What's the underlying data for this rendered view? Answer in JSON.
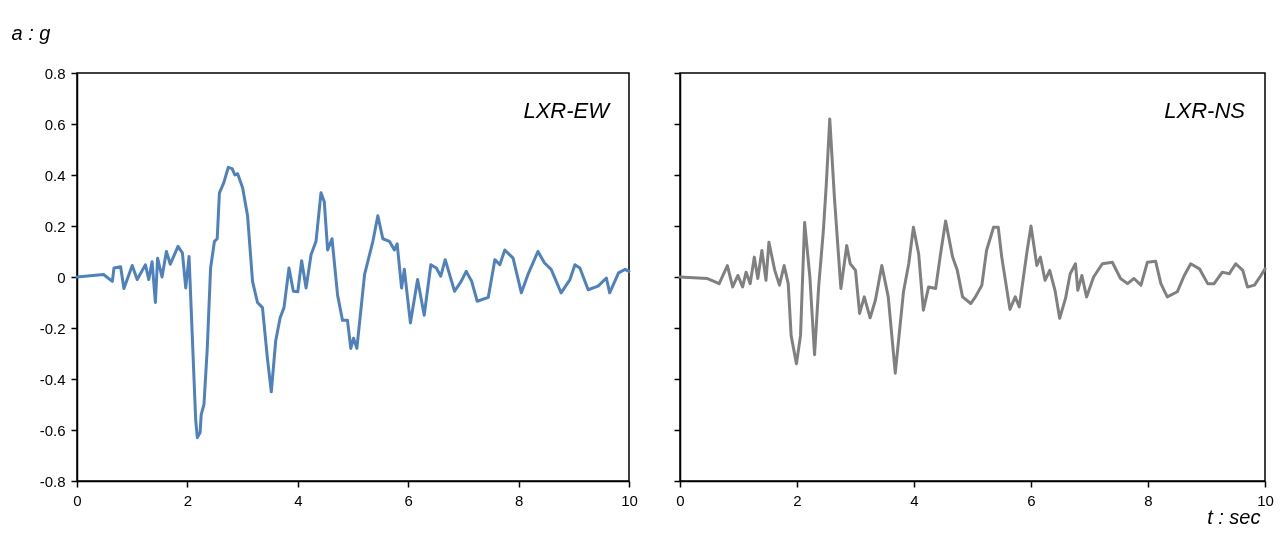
{
  "chart_data": [
    {
      "type": "line",
      "ylabel": "a : g",
      "annotations": [
        "LXR-EW"
      ],
      "xlim": [
        0,
        10
      ],
      "xticks": [
        0,
        2,
        4,
        6,
        8,
        10
      ],
      "ylim": [
        -0.8,
        0.8
      ],
      "yticks": [
        -0.8,
        -0.6,
        -0.4,
        -0.2,
        0,
        0.2,
        0.4,
        0.6,
        0.8
      ],
      "grid": false,
      "line_style": "solid",
      "marker": "none",
      "series": [
        {
          "color": "#4f81bd",
          "x": [
            0,
            0.48,
            0.64,
            0.67,
            0.79,
            0.85,
            1.0,
            1.09,
            1.24,
            1.3,
            1.36,
            1.42,
            1.46,
            1.54,
            1.62,
            1.69,
            1.83,
            1.91,
            1.97,
            2.03,
            2.15,
            2.18,
            2.23,
            2.25,
            2.3,
            2.36,
            2.42,
            2.49,
            2.54,
            2.58,
            2.66,
            2.74,
            2.81,
            2.86,
            2.91,
            3.0,
            3.09,
            3.18,
            3.27,
            3.36,
            3.45,
            3.52,
            3.6,
            3.68,
            3.75,
            3.84,
            3.92,
            4.0,
            4.07,
            4.15,
            4.24,
            4.33,
            4.42,
            4.48,
            4.54,
            4.62,
            4.72,
            4.81,
            4.9,
            4.96,
            5.01,
            5.07,
            5.21,
            5.36,
            5.45,
            5.54,
            5.66,
            5.75,
            5.8,
            5.88,
            5.93,
            6.04,
            6.17,
            6.29,
            6.41,
            6.51,
            6.59,
            6.67,
            6.84,
            6.96,
            7.05,
            7.15,
            7.25,
            7.45,
            7.57,
            7.66,
            7.75,
            7.9,
            8.05,
            8.17,
            8.35,
            8.47,
            8.59,
            8.77,
            8.93,
            9.02,
            9.11,
            9.26,
            9.44,
            9.59,
            9.65,
            9.81,
            9.93,
            10.0
          ],
          "values": [
            0,
            0.01,
            -0.017,
            0.035,
            0.04,
            -0.045,
            0.045,
            -0.01,
            0.048,
            -0.01,
            0.06,
            -0.1,
            0.074,
            0,
            0.1,
            0.05,
            0.12,
            0.094,
            -0.043,
            0.08,
            -0.56,
            -0.63,
            -0.61,
            -0.54,
            -0.5,
            -0.28,
            0.035,
            0.14,
            0.15,
            0.33,
            0.37,
            0.43,
            0.425,
            0.4,
            0.405,
            0.35,
            0.24,
            -0.017,
            -0.1,
            -0.12,
            -0.32,
            -0.45,
            -0.25,
            -0.16,
            -0.12,
            0.035,
            -0.056,
            -0.058,
            0.064,
            -0.043,
            0.087,
            0.14,
            0.33,
            0.295,
            0.106,
            0.15,
            -0.07,
            -0.17,
            -0.17,
            -0.28,
            -0.24,
            -0.28,
            0.01,
            0.14,
            0.24,
            0.15,
            0.14,
            0.106,
            0.13,
            -0.043,
            0.03,
            -0.18,
            -0.01,
            -0.15,
            0.048,
            0.035,
            0.003,
            0.068,
            -0.056,
            -0.017,
            0.022,
            -0.017,
            -0.095,
            -0.08,
            0.068,
            0.048,
            0.106,
            0.074,
            -0.062,
            0.01,
            0.1,
            0.055,
            0.03,
            -0.062,
            -0.01,
            0.048,
            0.035,
            -0.05,
            -0.036,
            -0.004,
            -0.062,
            0.016,
            0.03,
            0.022
          ]
        }
      ]
    },
    {
      "type": "line",
      "xlabel": "t : sec",
      "annotations": [
        "LXR-NS"
      ],
      "xlim": [
        0,
        10
      ],
      "xticks": [
        0,
        2,
        4,
        6,
        8,
        10
      ],
      "ylim": [
        -0.8,
        0.8
      ],
      "yticks": [
        -0.8,
        -0.6,
        -0.4,
        -0.2,
        0,
        0.2,
        0.4,
        0.6,
        0.8
      ],
      "tick_labels": "x",
      "grid": false,
      "line_style": "solid",
      "marker": "none",
      "series": [
        {
          "color": "#808080",
          "x": [
            0,
            0.47,
            0.67,
            0.81,
            0.9,
            0.99,
            1.07,
            1.13,
            1.2,
            1.27,
            1.33,
            1.4,
            1.47,
            1.52,
            1.62,
            1.7,
            1.78,
            1.85,
            1.9,
            1.99,
            2.06,
            2.13,
            2.22,
            2.3,
            2.37,
            2.45,
            2.5,
            2.56,
            2.64,
            2.75,
            2.85,
            2.91,
            3.0,
            3.07,
            3.15,
            3.25,
            3.34,
            3.45,
            3.56,
            3.68,
            3.82,
            3.91,
            3.99,
            4.08,
            4.16,
            4.25,
            4.37,
            4.45,
            4.54,
            4.66,
            4.74,
            4.83,
            4.97,
            5.05,
            5.16,
            5.24,
            5.36,
            5.44,
            5.5,
            5.64,
            5.73,
            5.8,
            5.93,
            6.0,
            6.1,
            6.16,
            6.24,
            6.32,
            6.41,
            6.49,
            6.59,
            6.67,
            6.76,
            6.8,
            6.87,
            6.95,
            7.07,
            7.22,
            7.39,
            7.53,
            7.65,
            7.76,
            7.88,
            7.99,
            8.13,
            8.22,
            8.33,
            8.5,
            8.62,
            8.73,
            8.88,
            9.02,
            9.13,
            9.27,
            9.39,
            9.5,
            9.62,
            9.7,
            9.82,
            9.93,
            10.0
          ],
          "values": [
            0,
            -0.006,
            -0.026,
            0.045,
            -0.039,
            0.006,
            -0.039,
            0.019,
            -0.026,
            0.078,
            -0.006,
            0.104,
            -0.013,
            0.136,
            0.026,
            -0.032,
            0.045,
            -0.026,
            -0.23,
            -0.34,
            -0.23,
            0.214,
            0,
            -0.305,
            -0.039,
            0.18,
            0.36,
            0.62,
            0.31,
            -0.045,
            0.123,
            0.052,
            0.026,
            -0.143,
            -0.078,
            -0.16,
            -0.091,
            0.045,
            -0.078,
            -0.377,
            -0.058,
            0.052,
            0.195,
            0.09,
            -0.13,
            -0.039,
            -0.045,
            0.084,
            0.22,
            0.078,
            0.026,
            -0.078,
            -0.104,
            -0.078,
            -0.032,
            0.104,
            0.195,
            0.195,
            0.078,
            -0.127,
            -0.078,
            -0.117,
            0.097,
            0.2,
            0.045,
            0.078,
            -0.013,
            0.026,
            -0.052,
            -0.162,
            -0.084,
            0.013,
            0.052,
            -0.052,
            0.006,
            -0.078,
            0,
            0.052,
            0.058,
            -0.006,
            -0.026,
            -0.006,
            -0.032,
            0.058,
            0.062,
            -0.026,
            -0.078,
            -0.058,
            0.006,
            0.052,
            0.032,
            -0.026,
            -0.026,
            0.019,
            0.013,
            0.052,
            0.026,
            -0.039,
            -0.032,
            0.006,
            0.032
          ]
        }
      ]
    }
  ]
}
